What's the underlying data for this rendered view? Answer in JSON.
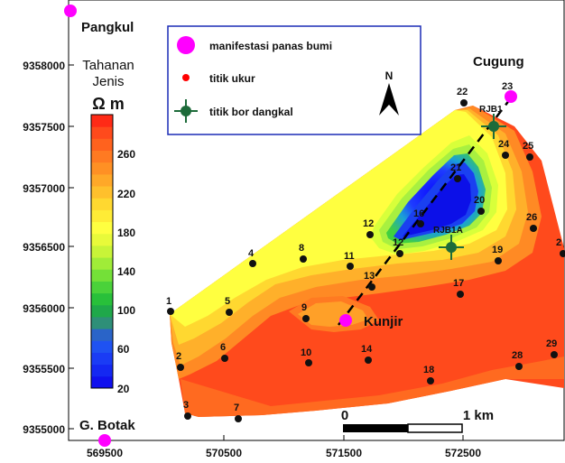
{
  "axes": {
    "x_ticks": [
      "569500",
      "570500",
      "571500",
      "572500"
    ],
    "y_ticks": [
      "9358000",
      "9357500",
      "9357000",
      "9356500",
      "9356000",
      "9355500",
      "9355000"
    ]
  },
  "places": {
    "pangkul": "Pangkul",
    "cugung": "Cugung",
    "kunjir": "Kunjir",
    "g_botak": "G. Botak"
  },
  "legend": {
    "manifestasi": "manifestasi panas bumi",
    "titik_ukur": "titik ukur",
    "titik_bor": "titik bor dangkal"
  },
  "colorbar": {
    "title_line1": "Tahanan",
    "title_line2": "Jenis",
    "unit": "Ω m",
    "ticks": [
      "260",
      "220",
      "180",
      "140",
      "100",
      "60",
      "20"
    ]
  },
  "north": "N",
  "scale": {
    "left": "0",
    "right": "1 km"
  },
  "boreholes": [
    "RJB1",
    "RJB1A"
  ],
  "points": [
    "1",
    "2",
    "3",
    "5",
    "6",
    "7",
    "4",
    "8",
    "9",
    "10",
    "11",
    "12",
    "12",
    "13",
    "14",
    "16",
    "17",
    "18",
    "19",
    "20",
    "21",
    "22",
    "23",
    "24",
    "25",
    "26",
    "2",
    "28",
    "29"
  ],
  "colors": {
    "manifest": "#ff00ff",
    "point": "#ff0000",
    "borehole": "#1d6b3a",
    "high": "#ff3a1a",
    "mid": "#ffff33",
    "low": "#1010ee"
  }
}
